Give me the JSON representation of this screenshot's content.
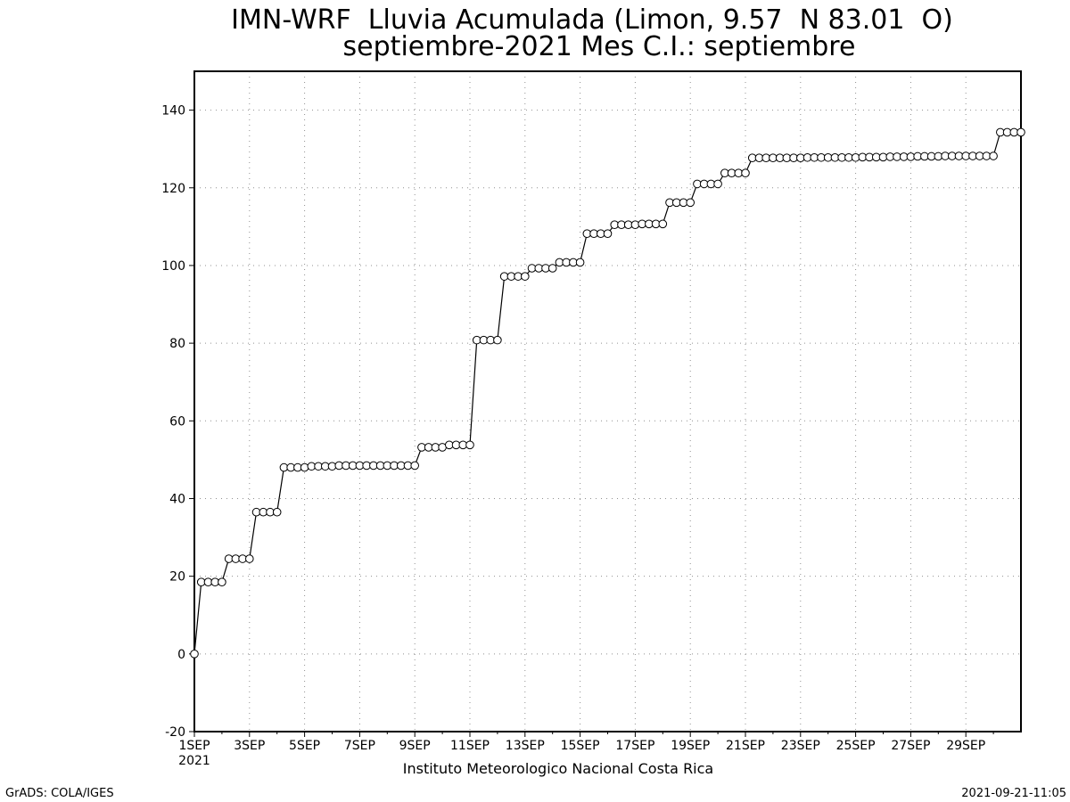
{
  "footer": {
    "institution": "Instituto Meteorologico Nacional Costa Rica",
    "software": "GrADS: COLA/IGES",
    "timestamp": "2021-09-21-11:05"
  },
  "chart_data": {
    "type": "line",
    "title": "IMN-WRF  Lluvia Acumulada (Limon, 9.57  N 83.01  O)",
    "subtitle": "septiembre-2021 Mes C.I.: septiembre",
    "xlabel": "",
    "ylabel": "",
    "x_start": "2021-09-01",
    "x_end": "2021-09-30",
    "x_tick_labels": [
      "1SEP",
      "3SEP",
      "5SEP",
      "7SEP",
      "9SEP",
      "11SEP",
      "13SEP",
      "15SEP",
      "17SEP",
      "19SEP",
      "21SEP",
      "23SEP",
      "25SEP",
      "27SEP",
      "29SEP"
    ],
    "x_tick_sublabel": "2021",
    "ylim": [
      -20,
      150
    ],
    "y_ticks": [
      -20,
      0,
      20,
      40,
      60,
      80,
      100,
      120,
      140
    ],
    "grid": true,
    "marker": "open-circle",
    "series": [
      {
        "points_per_day": 4,
        "values": [
          0.0,
          18.5,
          18.5,
          18.5,
          18.5,
          24.5,
          24.5,
          24.5,
          24.5,
          36.5,
          36.5,
          36.5,
          36.5,
          48.0,
          48.0,
          48.0,
          48.0,
          48.3,
          48.3,
          48.3,
          48.3,
          48.5,
          48.5,
          48.5,
          48.5,
          48.5,
          48.5,
          48.5,
          48.5,
          48.5,
          48.5,
          48.5,
          48.5,
          53.2,
          53.2,
          53.2,
          53.2,
          53.8,
          53.8,
          53.8,
          53.8,
          80.8,
          80.8,
          80.8,
          80.8,
          97.2,
          97.2,
          97.2,
          97.2,
          99.3,
          99.3,
          99.3,
          99.3,
          100.8,
          100.8,
          100.8,
          100.8,
          108.2,
          108.2,
          108.2,
          108.2,
          110.5,
          110.5,
          110.5,
          110.5,
          110.7,
          110.7,
          110.7,
          110.7,
          116.2,
          116.2,
          116.2,
          116.2,
          121.0,
          121.0,
          121.0,
          121.0,
          123.8,
          123.8,
          123.8,
          123.8,
          127.7,
          127.7,
          127.7,
          127.7,
          127.7,
          127.7,
          127.7,
          127.7,
          127.8,
          127.8,
          127.8,
          127.8,
          127.8,
          127.8,
          127.8,
          127.8,
          127.9,
          127.9,
          127.9,
          127.9,
          128.0,
          128.0,
          128.0,
          128.0,
          128.1,
          128.1,
          128.1,
          128.1,
          128.2,
          128.2,
          128.2,
          128.2,
          128.2,
          128.2,
          128.2,
          128.2,
          134.3,
          134.3,
          134.3,
          134.3
        ]
      }
    ]
  }
}
